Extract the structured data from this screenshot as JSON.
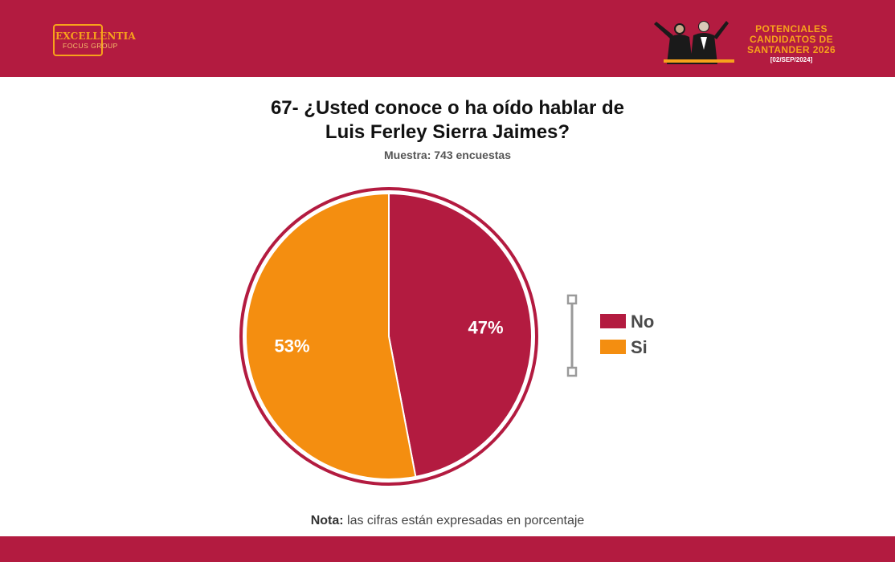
{
  "header": {
    "logo_main": "EXCELLENTIA",
    "logo_sub": "FOCUS GROUP",
    "event_line1": "POTENCIALES",
    "event_line2": "CANDIDATOS DE",
    "event_line3": "SANTANDER 2026",
    "event_date": "[02/SEP/2024]"
  },
  "title_line1": "67- ¿Usted conoce o ha oído hablar de",
  "title_line2": "Luis Ferley Sierra Jaimes?",
  "subtitle": "Muestra: 743 encuestas",
  "note_label": "Nota:",
  "note_text": " las cifras están expresadas en porcentaje",
  "colors": {
    "brand": "#b31b40",
    "accent": "#f7a21b",
    "no": "#b31b40",
    "si": "#f48e10"
  },
  "chart_data": {
    "type": "pie",
    "categories": [
      "No",
      "Si"
    ],
    "values": [
      47,
      53
    ],
    "value_labels": [
      "47%",
      "53%"
    ],
    "colors": [
      "#b31b40",
      "#f48e10"
    ],
    "legend_position": "right"
  }
}
